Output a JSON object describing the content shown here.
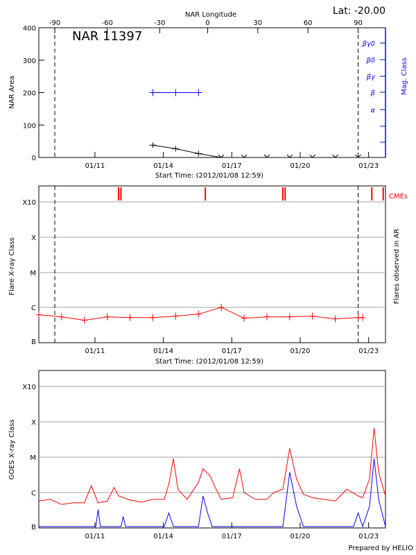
{
  "header": {
    "lat_label": "Lat: -20.00",
    "top_axis_label": "NAR Longitude",
    "region_label": "NAR 11397",
    "footer": "Prepared by HELIO"
  },
  "colors": {
    "red": "#ff0000",
    "blue": "#0000ff",
    "black": "#000000",
    "grid": "#a0a0a0"
  },
  "chart_data": [
    {
      "type": "line",
      "panel": "nar-area",
      "ylabel": "NAR Area",
      "ylabel_right": "Mag. Class",
      "xlabel": "Start Time: (2012/01/08 12:59)",
      "xlim_days": [
        0,
        15.2
      ],
      "ylim": [
        0,
        400
      ],
      "yticks": [
        0,
        100,
        200,
        300,
        400
      ],
      "xticks": [
        {
          "label": "01/11",
          "day": 2.46
        },
        {
          "label": "01/14",
          "day": 5.46
        },
        {
          "label": "01/17",
          "day": 8.46
        },
        {
          "label": "01/20",
          "day": 11.46
        },
        {
          "label": "01/23",
          "day": 14.46
        }
      ],
      "top_axis": {
        "ticks": [
          {
            "label": "-90",
            "day": 0.7
          },
          {
            "label": "-60",
            "day": 3.0
          },
          {
            "label": "-30",
            "day": 5.3
          },
          {
            "label": "0",
            "day": 7.4
          },
          {
            "label": "30",
            "day": 9.6
          },
          {
            "label": "60",
            "day": 11.8
          },
          {
            "label": "90",
            "day": 14.0
          }
        ]
      },
      "mag_classes": [
        "α",
        "β",
        "βγ",
        "βδ",
        "βγδ"
      ],
      "area_points": [
        [
          5.0,
          38
        ],
        [
          6.0,
          27
        ],
        [
          7.0,
          12
        ],
        [
          8.0,
          0
        ],
        [
          9.0,
          0
        ],
        [
          10.0,
          0
        ],
        [
          11.0,
          0
        ],
        [
          12.0,
          0
        ],
        [
          13.0,
          0
        ],
        [
          14.0,
          0
        ]
      ],
      "mag_points": [
        [
          5.0,
          200
        ],
        [
          6.0,
          200
        ],
        [
          7.0,
          200
        ]
      ],
      "dashed_days": [
        0.7,
        14.0
      ]
    },
    {
      "type": "line",
      "panel": "flare-class",
      "ylabel": "Flare X-ray Class",
      "ylabel_right": "Flares observed in AR",
      "xlabel": "Start Time: (2012/01/08 12:59)",
      "class_labels": [
        "B",
        "C",
        "M",
        "X",
        "X10"
      ],
      "cme_label": "CMEs",
      "flare_points": [
        [
          0.0,
          0.78
        ],
        [
          1.0,
          0.72
        ],
        [
          2.0,
          0.62
        ],
        [
          3.0,
          0.72
        ],
        [
          4.0,
          0.7
        ],
        [
          5.0,
          0.7
        ],
        [
          6.0,
          0.74
        ],
        [
          7.0,
          0.8
        ],
        [
          8.0,
          1.0
        ],
        [
          9.0,
          0.68
        ],
        [
          10.0,
          0.72
        ],
        [
          11.0,
          0.72
        ],
        [
          12.0,
          0.74
        ],
        [
          13.0,
          0.66
        ],
        [
          14.0,
          0.7
        ],
        [
          14.2,
          0.7
        ]
      ],
      "cme_days": [
        3.5,
        3.6,
        7.3,
        10.7,
        10.8,
        14.6,
        15.1
      ],
      "dashed_days": [
        0.7,
        14.0
      ]
    },
    {
      "type": "line",
      "panel": "goes",
      "ylabel": "GOES X-ray Class",
      "class_labels": [
        "B",
        "C",
        "M",
        "X",
        "X10"
      ],
      "series": [
        {
          "color": "#ff0000",
          "points": [
            [
              0,
              0.75
            ],
            [
              0.5,
              0.8
            ],
            [
              1.0,
              0.65
            ],
            [
              1.5,
              0.7
            ],
            [
              2.0,
              0.7
            ],
            [
              2.3,
              1.2
            ],
            [
              2.6,
              0.7
            ],
            [
              3.0,
              0.75
            ],
            [
              3.3,
              1.15
            ],
            [
              3.5,
              0.9
            ],
            [
              4.0,
              0.78
            ],
            [
              4.5,
              0.72
            ],
            [
              5.0,
              0.8
            ],
            [
              5.5,
              0.8
            ],
            [
              5.7,
              1.25
            ],
            [
              5.9,
              2.0
            ],
            [
              6.1,
              1.1
            ],
            [
              6.5,
              0.8
            ],
            [
              7.0,
              1.3
            ],
            [
              7.2,
              1.7
            ],
            [
              7.5,
              1.5
            ],
            [
              7.7,
              1.2
            ],
            [
              8.0,
              0.8
            ],
            [
              8.5,
              0.85
            ],
            [
              8.8,
              1.7
            ],
            [
              9.0,
              1.0
            ],
            [
              9.5,
              0.8
            ],
            [
              10.0,
              0.8
            ],
            [
              10.3,
              1.0
            ],
            [
              10.7,
              1.1
            ],
            [
              11.0,
              2.3
            ],
            [
              11.3,
              1.4
            ],
            [
              11.6,
              0.95
            ],
            [
              12.0,
              0.85
            ],
            [
              12.5,
              0.8
            ],
            [
              13.0,
              0.75
            ],
            [
              13.5,
              1.1
            ],
            [
              14.0,
              0.9
            ],
            [
              14.2,
              0.85
            ],
            [
              14.5,
              1.4
            ],
            [
              14.7,
              2.9
            ],
            [
              14.9,
              1.6
            ],
            [
              15.2,
              0.9
            ]
          ]
        },
        {
          "color": "#0000ff",
          "points": [
            [
              0,
              0.0
            ],
            [
              2.5,
              0.0
            ],
            [
              2.6,
              0.5
            ],
            [
              2.7,
              0.0
            ],
            [
              3.6,
              0.0
            ],
            [
              3.7,
              0.3
            ],
            [
              3.8,
              0.0
            ],
            [
              5.5,
              0.0
            ],
            [
              5.7,
              0.4
            ],
            [
              5.9,
              0.0
            ],
            [
              7.0,
              0.0
            ],
            [
              7.2,
              0.9
            ],
            [
              7.4,
              0.4
            ],
            [
              7.6,
              0.0
            ],
            [
              10.7,
              0.0
            ],
            [
              11.0,
              1.6
            ],
            [
              11.3,
              0.6
            ],
            [
              11.6,
              0.0
            ],
            [
              13.8,
              0.0
            ],
            [
              14.0,
              0.4
            ],
            [
              14.2,
              0.0
            ],
            [
              14.5,
              0.6
            ],
            [
              14.7,
              2.0
            ],
            [
              14.9,
              0.8
            ],
            [
              15.2,
              0.0
            ]
          ]
        }
      ]
    }
  ]
}
